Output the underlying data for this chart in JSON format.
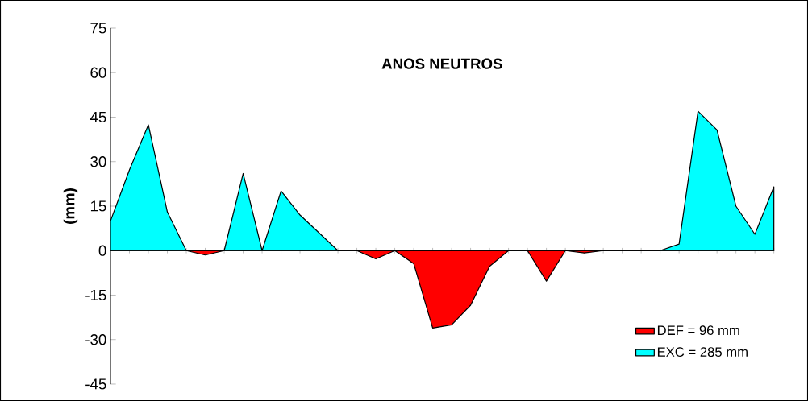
{
  "chart_data": {
    "type": "area",
    "title": "ANOS NEUTROS",
    "ylabel": "(mm)",
    "categories": [
      null,
      null,
      null,
      null,
      null,
      null,
      null,
      null,
      null,
      null,
      null,
      null,
      null,
      null,
      null,
      null,
      null,
      null,
      null,
      null,
      null,
      null,
      null,
      null,
      null,
      null,
      null,
      null,
      null,
      null,
      null,
      null,
      null,
      null,
      null,
      null
    ],
    "series": [
      {
        "name": "DEF = 96 mm",
        "color": "#ff0000",
        "values": [
          0,
          0,
          0,
          0,
          0,
          -1.5,
          0,
          0,
          0,
          0,
          0,
          0,
          0,
          0,
          -2.8,
          0,
          -4.4,
          -26.1,
          -25.0,
          -18.4,
          -5.3,
          0,
          0,
          -10.3,
          0,
          -0.8,
          0,
          0,
          0,
          0,
          0,
          0,
          0,
          0,
          0,
          0
        ]
      },
      {
        "name": "EXC = 285 mm",
        "color": "#00ffff",
        "values": [
          10.0,
          27.2,
          42.4,
          13.0,
          0,
          0,
          0,
          26.0,
          0,
          20.1,
          12,
          6,
          0,
          0,
          0,
          0,
          0,
          0,
          0,
          0,
          0,
          0,
          0,
          0,
          0,
          0,
          0,
          0,
          0,
          0,
          2.2,
          47.0,
          40.7,
          15.0,
          5.5,
          21.5
        ]
      }
    ],
    "ylim": [
      -45,
      75
    ],
    "yticks": [
      -45,
      -30,
      -15,
      0,
      15,
      30,
      45,
      60,
      75
    ],
    "legend": "bottom right"
  }
}
